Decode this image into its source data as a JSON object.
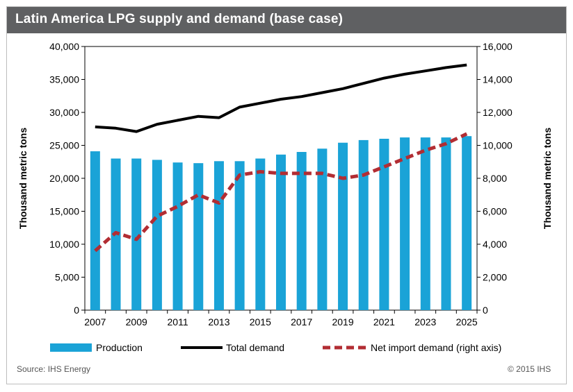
{
  "title": "Latin America LPG supply and demand (base case)",
  "source": "Source: IHS Energy",
  "copyright": "© 2015 IHS",
  "colors": {
    "production": "#1aa3d7",
    "total_demand": "#000000",
    "net_import": "#b22d33",
    "title_bar": "#5f6062"
  },
  "chart_data": {
    "type": "bar",
    "x": [
      2007,
      2008,
      2009,
      2010,
      2011,
      2012,
      2013,
      2014,
      2015,
      2016,
      2017,
      2018,
      2019,
      2020,
      2021,
      2022,
      2023,
      2024,
      2025
    ],
    "x_tick_labels": [
      "2007",
      "2009",
      "2011",
      "2013",
      "2015",
      "2017",
      "2019",
      "2021",
      "2023",
      "2025"
    ],
    "ylabel_left": "Thousand metric tons",
    "ylabel_right": "Thousand metric tons",
    "ylim_left": [
      0,
      40000
    ],
    "ylim_right": [
      0,
      16000
    ],
    "y_ticks_left": [
      "40,000",
      "35,000",
      "30,000",
      "25,000",
      "20,000",
      "15,000",
      "10,000",
      "5,000",
      "0"
    ],
    "y_ticks_right": [
      "16,000",
      "14,000",
      "12,000",
      "10,000",
      "8,000",
      "6,000",
      "4,000",
      "2,000",
      "0"
    ],
    "grid": false,
    "legend_position": "bottom",
    "series": [
      {
        "name": "Production",
        "type": "bar",
        "axis": "left",
        "values": [
          24100,
          23000,
          23000,
          22800,
          22400,
          22300,
          22600,
          22600,
          23000,
          23600,
          24000,
          24500,
          25400,
          25800,
          26000,
          26200,
          26200,
          26200,
          26400
        ]
      },
      {
        "name": "Total demand",
        "type": "line",
        "axis": "left",
        "values": [
          27800,
          27600,
          27100,
          28200,
          28800,
          29400,
          29200,
          30800,
          31400,
          32000,
          32400,
          33000,
          33600,
          34400,
          35200,
          35800,
          36300,
          36800,
          37200
        ]
      },
      {
        "name": "Net import demand (right axis)",
        "type": "dashed-line",
        "axis": "right",
        "values": [
          3600,
          4700,
          4300,
          5700,
          6300,
          7000,
          6500,
          8200,
          8400,
          8300,
          8300,
          8300,
          8000,
          8200,
          8700,
          9200,
          9700,
          10100,
          10700
        ]
      }
    ]
  }
}
